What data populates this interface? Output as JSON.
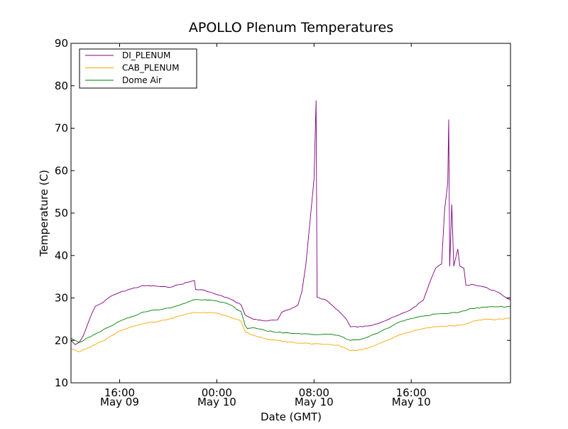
{
  "chart_data": {
    "type": "line",
    "title": "APOLLO Plenum Temperatures",
    "xlabel": "Date (GMT)",
    "ylabel": "Temperature (C)",
    "ylim": [
      10,
      90
    ],
    "xlim": [
      "2015-05-09T12:00",
      "2015-05-11T00:10"
    ],
    "yticks": [
      10,
      20,
      30,
      40,
      50,
      60,
      70,
      80,
      90
    ],
    "xticks": [
      {
        "x": "2015-05-09T16:00",
        "time": "16:00",
        "date": "May 09"
      },
      {
        "x": "2015-05-10T00:00",
        "time": "00:00",
        "date": "May 10"
      },
      {
        "x": "2015-05-10T08:00",
        "time": "08:00",
        "date": "May 10"
      },
      {
        "x": "2015-05-10T16:00",
        "time": "16:00",
        "date": "May 10"
      }
    ],
    "grid": false,
    "legend": "top-left",
    "series": [
      {
        "name": "DI_PLENUM",
        "color": "#800080",
        "points": [
          [
            "2015-05-09T12:00",
            20.0
          ],
          [
            "2015-05-09T12:20",
            19.0
          ],
          [
            "2015-05-09T12:40",
            19.5
          ],
          [
            "2015-05-09T13:00",
            21.0
          ],
          [
            "2015-05-09T13:20",
            23.5
          ],
          [
            "2015-05-09T13:40",
            26.0
          ],
          [
            "2015-05-09T14:00",
            28.0
          ],
          [
            "2015-05-09T14:40",
            29.0
          ],
          [
            "2015-05-09T15:20",
            30.5
          ],
          [
            "2015-05-09T16:00",
            31.3
          ],
          [
            "2015-05-09T17:00",
            32.2
          ],
          [
            "2015-05-09T18:00",
            32.9
          ],
          [
            "2015-05-09T19:00",
            32.8
          ],
          [
            "2015-05-09T20:00",
            32.5
          ],
          [
            "2015-05-09T21:00",
            33.2
          ],
          [
            "2015-05-09T22:00",
            34.0
          ],
          [
            "2015-05-09T22:10",
            34.1
          ],
          [
            "2015-05-09T22:15",
            32.0
          ],
          [
            "2015-05-09T23:00",
            31.8
          ],
          [
            "2015-05-10T00:00",
            30.8
          ],
          [
            "2015-05-10T01:00",
            29.9
          ],
          [
            "2015-05-10T02:00",
            28.4
          ],
          [
            "2015-05-10T02:20",
            26.0
          ],
          [
            "2015-05-10T03:00",
            25.0
          ],
          [
            "2015-05-10T04:00",
            24.6
          ],
          [
            "2015-05-10T05:00",
            24.8
          ],
          [
            "2015-05-10T05:20",
            26.6
          ],
          [
            "2015-05-10T06:00",
            27.3
          ],
          [
            "2015-05-10T06:40",
            28.3
          ],
          [
            "2015-05-10T07:00",
            31.5
          ],
          [
            "2015-05-10T07:20",
            38.0
          ],
          [
            "2015-05-10T07:40",
            48.0
          ],
          [
            "2015-05-10T08:00",
            58.0
          ],
          [
            "2015-05-10T08:10",
            76.5
          ],
          [
            "2015-05-10T08:15",
            30.2
          ],
          [
            "2015-05-10T09:00",
            29.5
          ],
          [
            "2015-05-10T10:00",
            27.0
          ],
          [
            "2015-05-10T10:40",
            25.0
          ],
          [
            "2015-05-10T11:00",
            23.2
          ],
          [
            "2015-05-10T12:00",
            23.2
          ],
          [
            "2015-05-10T13:00",
            23.8
          ],
          [
            "2015-05-10T14:00",
            24.8
          ],
          [
            "2015-05-10T15:00",
            26.0
          ],
          [
            "2015-05-10T16:00",
            27.3
          ],
          [
            "2015-05-10T17:00",
            29.5
          ],
          [
            "2015-05-10T17:30",
            33.5
          ],
          [
            "2015-05-10T18:00",
            37.0
          ],
          [
            "2015-05-10T18:30",
            38.0
          ],
          [
            "2015-05-10T18:45",
            51.0
          ],
          [
            "2015-05-10T19:00",
            57.0
          ],
          [
            "2015-05-10T19:05",
            72.0
          ],
          [
            "2015-05-10T19:10",
            37.5
          ],
          [
            "2015-05-10T19:20",
            52.0
          ],
          [
            "2015-05-10T19:30",
            37.5
          ],
          [
            "2015-05-10T19:50",
            41.5
          ],
          [
            "2015-05-10T20:00",
            37.5
          ],
          [
            "2015-05-10T20:20",
            37.0
          ],
          [
            "2015-05-10T20:30",
            33.0
          ],
          [
            "2015-05-10T21:00",
            33.2
          ],
          [
            "2015-05-10T22:00",
            32.6
          ],
          [
            "2015-05-10T23:00",
            31.5
          ],
          [
            "2015-05-11T00:10",
            29.5
          ]
        ]
      },
      {
        "name": "CAB_PLENUM",
        "color": "#ffa500",
        "points": [
          [
            "2015-05-09T12:00",
            18.0
          ],
          [
            "2015-05-09T12:40",
            17.3
          ],
          [
            "2015-05-09T14:00",
            19.0
          ],
          [
            "2015-05-09T15:00",
            20.5
          ],
          [
            "2015-05-09T16:00",
            22.2
          ],
          [
            "2015-05-09T17:00",
            23.2
          ],
          [
            "2015-05-09T18:00",
            24.0
          ],
          [
            "2015-05-09T19:00",
            24.3
          ],
          [
            "2015-05-09T20:00",
            25.0
          ],
          [
            "2015-05-09T21:00",
            25.8
          ],
          [
            "2015-05-09T22:00",
            26.6
          ],
          [
            "2015-05-09T23:00",
            26.6
          ],
          [
            "2015-05-10T00:00",
            26.4
          ],
          [
            "2015-05-10T01:00",
            25.6
          ],
          [
            "2015-05-10T02:00",
            24.5
          ],
          [
            "2015-05-10T02:20",
            22.0
          ],
          [
            "2015-05-10T03:00",
            21.2
          ],
          [
            "2015-05-10T04:00",
            20.4
          ],
          [
            "2015-05-10T05:00",
            20.0
          ],
          [
            "2015-05-10T06:00",
            19.6
          ],
          [
            "2015-05-10T07:00",
            19.3
          ],
          [
            "2015-05-10T08:00",
            19.2
          ],
          [
            "2015-05-10T09:00",
            19.1
          ],
          [
            "2015-05-10T10:00",
            18.9
          ],
          [
            "2015-05-10T11:00",
            17.6
          ],
          [
            "2015-05-10T12:00",
            17.8
          ],
          [
            "2015-05-10T13:00",
            18.8
          ],
          [
            "2015-05-10T14:00",
            20.0
          ],
          [
            "2015-05-10T15:00",
            21.3
          ],
          [
            "2015-05-10T16:00",
            22.1
          ],
          [
            "2015-05-10T17:00",
            22.8
          ],
          [
            "2015-05-10T18:00",
            23.2
          ],
          [
            "2015-05-10T19:00",
            23.4
          ],
          [
            "2015-05-10T20:00",
            23.6
          ],
          [
            "2015-05-10T21:00",
            24.4
          ],
          [
            "2015-05-10T22:00",
            25.0
          ],
          [
            "2015-05-10T23:00",
            24.9
          ],
          [
            "2015-05-11T00:10",
            25.2
          ]
        ]
      },
      {
        "name": "Dome Air",
        "color": "#008000",
        "points": [
          [
            "2015-05-09T12:00",
            20.5
          ],
          [
            "2015-05-09T12:40",
            19.5
          ],
          [
            "2015-05-09T14:00",
            21.5
          ],
          [
            "2015-05-09T15:00",
            23.0
          ],
          [
            "2015-05-09T16:00",
            24.5
          ],
          [
            "2015-05-09T17:00",
            25.6
          ],
          [
            "2015-05-09T18:00",
            26.7
          ],
          [
            "2015-05-09T19:00",
            27.2
          ],
          [
            "2015-05-09T20:00",
            27.6
          ],
          [
            "2015-05-09T21:00",
            28.4
          ],
          [
            "2015-05-09T22:00",
            29.5
          ],
          [
            "2015-05-09T23:00",
            29.6
          ],
          [
            "2015-05-10T00:00",
            29.3
          ],
          [
            "2015-05-10T01:00",
            28.5
          ],
          [
            "2015-05-10T02:00",
            26.8
          ],
          [
            "2015-05-10T02:20",
            23.5
          ],
          [
            "2015-05-10T02:30",
            22.8
          ],
          [
            "2015-05-10T03:00",
            23.0
          ],
          [
            "2015-05-10T04:00",
            22.3
          ],
          [
            "2015-05-10T05:00",
            21.9
          ],
          [
            "2015-05-10T06:00",
            21.7
          ],
          [
            "2015-05-10T07:00",
            21.5
          ],
          [
            "2015-05-10T08:00",
            21.4
          ],
          [
            "2015-05-10T09:00",
            21.5
          ],
          [
            "2015-05-10T10:00",
            21.2
          ],
          [
            "2015-05-10T11:00",
            20.0
          ],
          [
            "2015-05-10T12:00",
            20.4
          ],
          [
            "2015-05-10T13:00",
            21.5
          ],
          [
            "2015-05-10T14:00",
            22.8
          ],
          [
            "2015-05-10T15:00",
            24.3
          ],
          [
            "2015-05-10T16:00",
            25.2
          ],
          [
            "2015-05-10T17:00",
            25.7
          ],
          [
            "2015-05-10T18:00",
            26.2
          ],
          [
            "2015-05-10T19:00",
            26.3
          ],
          [
            "2015-05-10T20:00",
            26.7
          ],
          [
            "2015-05-10T21:00",
            27.5
          ],
          [
            "2015-05-10T22:00",
            27.8
          ],
          [
            "2015-05-10T23:00",
            27.9
          ],
          [
            "2015-05-11T00:10",
            28.0
          ]
        ]
      }
    ]
  }
}
